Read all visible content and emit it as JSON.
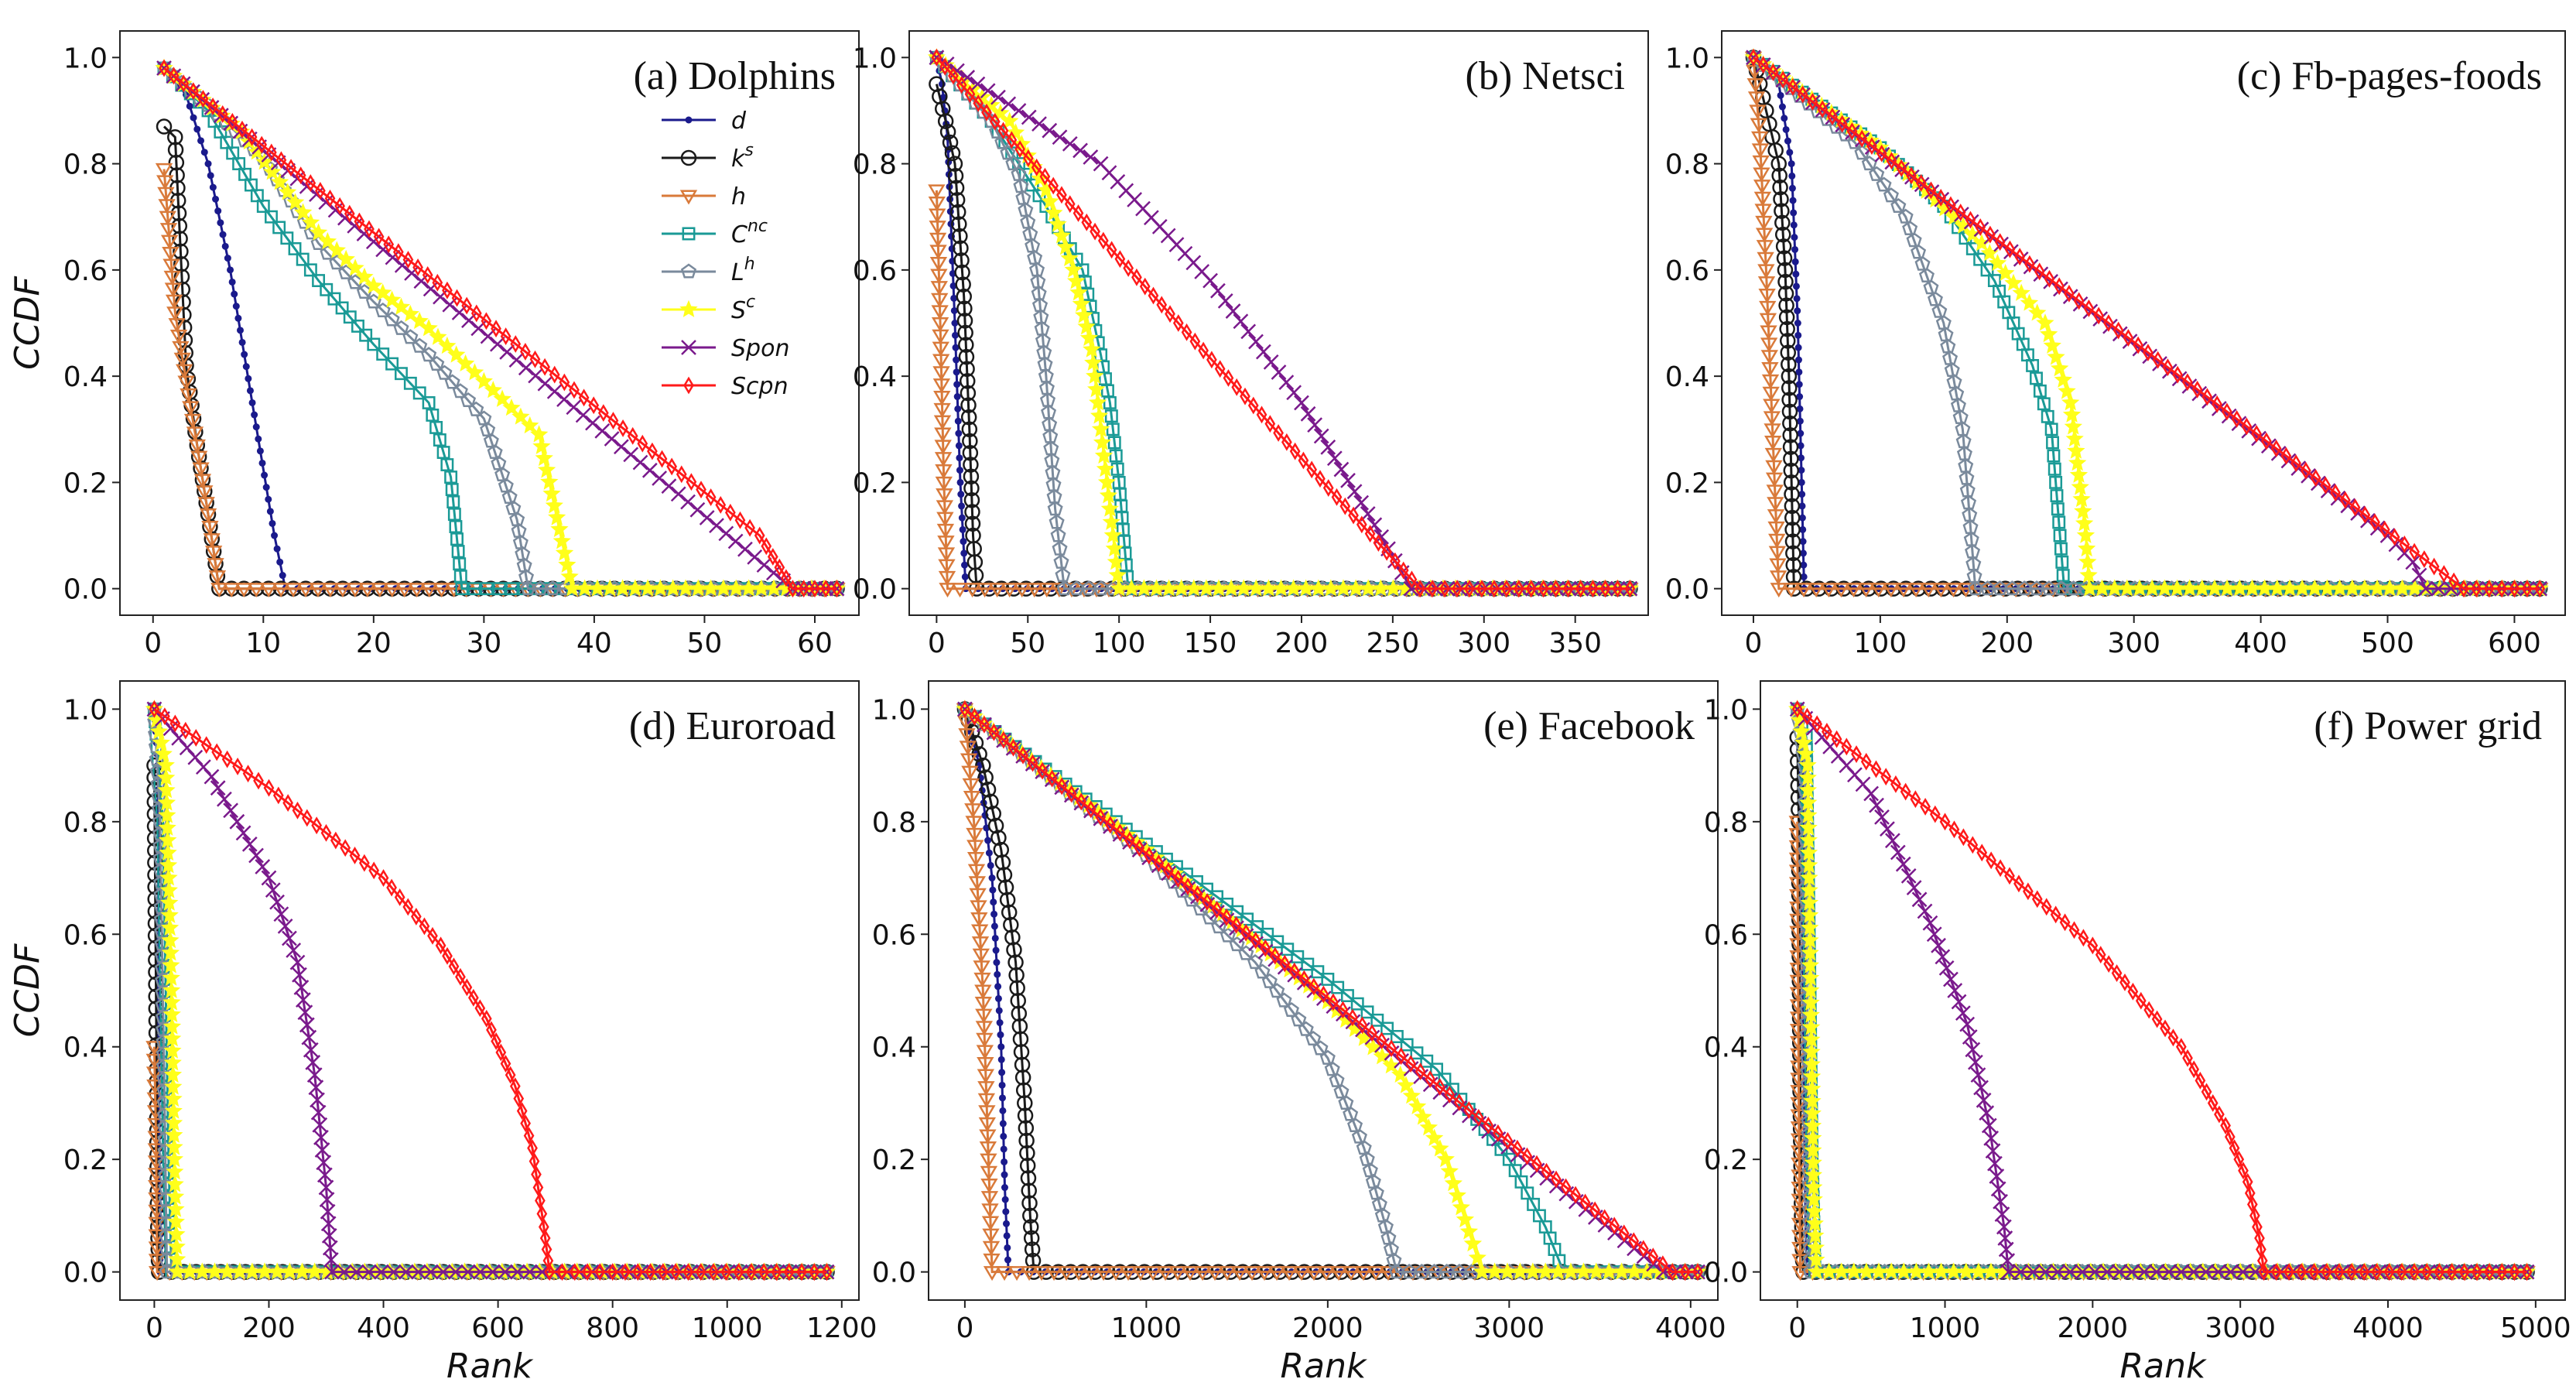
{
  "figure": {
    "legend": [
      "d",
      "ks",
      "h",
      "Cnc",
      "Lh",
      "Sc",
      "Spon",
      "Scpn"
    ]
  },
  "chart_data": [
    {
      "type": "line",
      "title": "(a) Dolphins",
      "xlabel": "",
      "ylabel": "CCDF",
      "xlim": [
        -3,
        64
      ],
      "ylim": [
        -0.05,
        1.05
      ],
      "xticks": [
        0,
        10,
        20,
        30,
        40,
        50,
        60
      ],
      "yticks": [
        0.0,
        0.2,
        0.4,
        0.6,
        0.8,
        1.0
      ],
      "series": [
        {
          "name": "d",
          "x": [
            1,
            3,
            5,
            7,
            9,
            11,
            12,
            62
          ],
          "y": [
            0.98,
            0.93,
            0.8,
            0.6,
            0.35,
            0.1,
            0.0,
            0.0
          ]
        },
        {
          "name": "ks",
          "x": [
            1,
            2,
            3,
            4,
            5,
            6,
            62
          ],
          "y": [
            0.87,
            0.85,
            0.42,
            0.27,
            0.14,
            0.0,
            0.0
          ]
        },
        {
          "name": "h",
          "x": [
            1,
            2,
            3,
            4,
            5,
            6,
            62
          ],
          "y": [
            0.79,
            0.52,
            0.39,
            0.27,
            0.14,
            0.0,
            0.0
          ]
        },
        {
          "name": "Cnc",
          "x": [
            1,
            5,
            10,
            15,
            20,
            25,
            27,
            28,
            62
          ],
          "y": [
            0.98,
            0.9,
            0.72,
            0.58,
            0.46,
            0.35,
            0.21,
            0.0,
            0.0
          ]
        },
        {
          "name": "Lh",
          "x": [
            1,
            5,
            10,
            15,
            20,
            25,
            30,
            33,
            34,
            62
          ],
          "y": [
            0.98,
            0.91,
            0.81,
            0.65,
            0.54,
            0.44,
            0.32,
            0.13,
            0.0,
            0.0
          ]
        },
        {
          "name": "Sc",
          "x": [
            1,
            8,
            15,
            20,
            25,
            30,
            35,
            38,
            62
          ],
          "y": [
            0.98,
            0.86,
            0.67,
            0.57,
            0.49,
            0.39,
            0.29,
            0.0,
            0.0
          ]
        },
        {
          "name": "Spon",
          "x": [
            1,
            58,
            62
          ],
          "y": [
            0.98,
            0.0,
            0.0
          ]
        },
        {
          "name": "Scpn",
          "x": [
            1,
            55,
            58,
            62
          ],
          "y": [
            0.98,
            0.1,
            0.0,
            0.0
          ]
        }
      ]
    },
    {
      "type": "line",
      "title": "(b) Netsci",
      "xlabel": "",
      "ylabel": "",
      "xlim": [
        -15,
        390
      ],
      "ylim": [
        -0.05,
        1.05
      ],
      "xticks": [
        0,
        50,
        100,
        150,
        200,
        250,
        300,
        350
      ],
      "yticks": [
        0.0,
        0.2,
        0.4,
        0.6,
        0.8,
        1.0
      ],
      "series": [
        {
          "name": "d",
          "x": [
            0,
            3,
            6,
            10,
            13,
            16,
            380
          ],
          "y": [
            1.0,
            0.95,
            0.85,
            0.5,
            0.2,
            0.0,
            0.0
          ]
        },
        {
          "name": "ks",
          "x": [
            0,
            5,
            10,
            15,
            18,
            20,
            22,
            380
          ],
          "y": [
            0.95,
            0.88,
            0.8,
            0.55,
            0.3,
            0.1,
            0.0,
            0.0
          ]
        },
        {
          "name": "h",
          "x": [
            0,
            2,
            4,
            6,
            380
          ],
          "y": [
            0.75,
            0.5,
            0.2,
            0.0,
            0.0
          ]
        },
        {
          "name": "Cnc",
          "x": [
            0,
            30,
            60,
            80,
            90,
            95,
            100,
            105,
            380
          ],
          "y": [
            1.0,
            0.88,
            0.72,
            0.6,
            0.44,
            0.35,
            0.2,
            0.0,
            0.0
          ]
        },
        {
          "name": "Lh",
          "x": [
            0,
            30,
            45,
            55,
            60,
            65,
            70,
            380
          ],
          "y": [
            1.0,
            0.88,
            0.78,
            0.6,
            0.4,
            0.15,
            0.0,
            0.0
          ]
        },
        {
          "name": "Sc",
          "x": [
            0,
            40,
            60,
            75,
            85,
            90,
            95,
            100,
            380
          ],
          "y": [
            1.0,
            0.88,
            0.75,
            0.6,
            0.45,
            0.3,
            0.15,
            0.0,
            0.0
          ]
        },
        {
          "name": "Spon",
          "x": [
            0,
            90,
            150,
            200,
            240,
            255,
            260,
            380
          ],
          "y": [
            1.0,
            0.8,
            0.58,
            0.35,
            0.12,
            0.03,
            0.0,
            0.0
          ]
        },
        {
          "name": "Scpn",
          "x": [
            0,
            265,
            380
          ],
          "y": [
            1.0,
            0.0,
            0.0
          ]
        }
      ]
    },
    {
      "type": "line",
      "title": "(c) Fb-pages-foods",
      "xlabel": "",
      "ylabel": "",
      "xlim": [
        -25,
        640
      ],
      "ylim": [
        -0.05,
        1.05
      ],
      "xticks": [
        0,
        100,
        200,
        300,
        400,
        500,
        600
      ],
      "yticks": [
        0.0,
        0.2,
        0.4,
        0.6,
        0.8,
        1.0
      ],
      "series": [
        {
          "name": "d",
          "x": [
            0,
            20,
            30,
            35,
            38,
            40,
            620
          ],
          "y": [
            1.0,
            0.95,
            0.8,
            0.5,
            0.2,
            0.0,
            0.0
          ]
        },
        {
          "name": "ks",
          "x": [
            0,
            10,
            20,
            25,
            28,
            30,
            32,
            620
          ],
          "y": [
            1.0,
            0.9,
            0.8,
            0.6,
            0.4,
            0.2,
            0.0,
            0.0
          ]
        },
        {
          "name": "h",
          "x": [
            0,
            5,
            10,
            15,
            20,
            620
          ],
          "y": [
            1.0,
            0.85,
            0.6,
            0.3,
            0.0,
            0.0
          ]
        },
        {
          "name": "Cnc",
          "x": [
            0,
            100,
            150,
            190,
            220,
            235,
            240,
            245,
            620
          ],
          "y": [
            1.0,
            0.83,
            0.72,
            0.58,
            0.42,
            0.3,
            0.15,
            0.0,
            0.0
          ]
        },
        {
          "name": "Lh",
          "x": [
            0,
            80,
            120,
            150,
            165,
            175,
            620
          ],
          "y": [
            1.0,
            0.84,
            0.7,
            0.5,
            0.3,
            0.0,
            0.0
          ]
        },
        {
          "name": "Sc",
          "x": [
            0,
            100,
            180,
            230,
            250,
            262,
            265,
            620
          ],
          "y": [
            1.0,
            0.83,
            0.65,
            0.5,
            0.35,
            0.1,
            0.0,
            0.0
          ]
        },
        {
          "name": "Spon",
          "x": [
            0,
            500,
            520,
            530,
            620
          ],
          "y": [
            1.0,
            0.1,
            0.05,
            0.0,
            0.0
          ]
        },
        {
          "name": "Scpn",
          "x": [
            0,
            560,
            620
          ],
          "y": [
            1.0,
            0.0,
            0.0
          ]
        }
      ]
    },
    {
      "type": "line",
      "title": "(d) Euroroad",
      "xlabel": "Rank",
      "ylabel": "CCDF",
      "xlim": [
        -60,
        1230
      ],
      "ylim": [
        -0.05,
        1.05
      ],
      "xticks": [
        0,
        200,
        400,
        600,
        800,
        1000,
        1200
      ],
      "yticks": [
        0.0,
        0.2,
        0.4,
        0.6,
        0.8,
        1.0
      ],
      "series": [
        {
          "name": "d",
          "x": [
            0,
            6,
            10,
            1174
          ],
          "y": [
            1.0,
            0.9,
            0.0,
            0.0
          ]
        },
        {
          "name": "ks",
          "x": [
            0,
            4,
            6,
            8,
            1174
          ],
          "y": [
            0.9,
            0.36,
            0.1,
            0.0,
            0.0
          ]
        },
        {
          "name": "h",
          "x": [
            0,
            3,
            5,
            1174
          ],
          "y": [
            0.4,
            0.24,
            0.0,
            0.0
          ]
        },
        {
          "name": "Cnc",
          "x": [
            0,
            15,
            20,
            25,
            30,
            1174
          ],
          "y": [
            1.0,
            0.8,
            0.5,
            0.2,
            0.0,
            0.0
          ]
        },
        {
          "name": "Lh",
          "x": [
            0,
            10,
            18,
            22,
            1174
          ],
          "y": [
            1.0,
            0.8,
            0.3,
            0.0,
            0.0
          ]
        },
        {
          "name": "Sc",
          "x": [
            0,
            20,
            30,
            35,
            40,
            1174
          ],
          "y": [
            1.0,
            0.9,
            0.5,
            0.2,
            0.0,
            0.0
          ]
        },
        {
          "name": "Spon",
          "x": [
            0,
            100,
            200,
            250,
            280,
            300,
            310,
            1174
          ],
          "y": [
            1.0,
            0.88,
            0.7,
            0.55,
            0.35,
            0.15,
            0.0,
            0.0
          ]
        },
        {
          "name": "Scpn",
          "x": [
            0,
            200,
            400,
            500,
            580,
            630,
            660,
            680,
            690,
            1174
          ],
          "y": [
            1.0,
            0.86,
            0.7,
            0.58,
            0.45,
            0.33,
            0.22,
            0.08,
            0.0,
            0.0
          ]
        }
      ]
    },
    {
      "type": "line",
      "title": "(e) Facebook",
      "xlabel": "Rank",
      "ylabel": "",
      "xlim": [
        -200,
        4150
      ],
      "ylim": [
        -0.05,
        1.05
      ],
      "xticks": [
        0,
        1000,
        2000,
        3000,
        4000
      ],
      "yticks": [
        0.0,
        0.2,
        0.4,
        0.6,
        0.8,
        1.0
      ],
      "series": [
        {
          "name": "d",
          "x": [
            0,
            80,
            150,
            200,
            220,
            240,
            4039
          ],
          "y": [
            1.0,
            0.9,
            0.7,
            0.4,
            0.15,
            0.0,
            0.0
          ]
        },
        {
          "name": "ks",
          "x": [
            0,
            100,
            200,
            280,
            330,
            360,
            380,
            4039
          ],
          "y": [
            1.0,
            0.9,
            0.75,
            0.55,
            0.3,
            0.1,
            0.0,
            0.0
          ]
        },
        {
          "name": "h",
          "x": [
            0,
            50,
            100,
            130,
            150,
            4039
          ],
          "y": [
            1.0,
            0.8,
            0.5,
            0.2,
            0.0,
            0.0
          ]
        },
        {
          "name": "Cnc",
          "x": [
            0,
            1000,
            2000,
            2600,
            3000,
            3200,
            3300,
            4039
          ],
          "y": [
            1.0,
            0.76,
            0.52,
            0.36,
            0.2,
            0.08,
            0.0,
            0.0
          ]
        },
        {
          "name": "Lh",
          "x": [
            0,
            1000,
            1600,
            2000,
            2200,
            2320,
            2380,
            4039
          ],
          "y": [
            1.0,
            0.74,
            0.55,
            0.38,
            0.22,
            0.08,
            0.0,
            0.0
          ]
        },
        {
          "name": "Sc",
          "x": [
            0,
            1000,
            2000,
            2400,
            2650,
            2800,
            2850,
            4039
          ],
          "y": [
            1.0,
            0.75,
            0.48,
            0.35,
            0.2,
            0.05,
            0.0,
            0.0
          ]
        },
        {
          "name": "Spon",
          "x": [
            0,
            3850,
            4039
          ],
          "y": [
            1.0,
            0.0,
            0.0
          ]
        },
        {
          "name": "Scpn",
          "x": [
            0,
            3900,
            4039
          ],
          "y": [
            1.0,
            0.0,
            0.0
          ]
        }
      ]
    },
    {
      "type": "line",
      "title": "(f) Power grid",
      "xlabel": "Rank",
      "ylabel": "",
      "xlim": [
        -250,
        5200
      ],
      "ylim": [
        -0.05,
        1.05
      ],
      "xticks": [
        0,
        1000,
        2000,
        3000,
        4000,
        5000
      ],
      "yticks": [
        0.0,
        0.2,
        0.4,
        0.6,
        0.8,
        1.0
      ],
      "series": [
        {
          "name": "d",
          "x": [
            0,
            20,
            40,
            60,
            4941
          ],
          "y": [
            1.0,
            0.95,
            0.4,
            0.0,
            0.0
          ]
        },
        {
          "name": "ks",
          "x": [
            0,
            10,
            20,
            30,
            40,
            4941
          ],
          "y": [
            0.95,
            0.8,
            0.32,
            0.1,
            0.0,
            0.0
          ]
        },
        {
          "name": "h",
          "x": [
            0,
            10,
            20,
            4941
          ],
          "y": [
            0.8,
            0.3,
            0.0,
            0.0
          ]
        },
        {
          "name": "Cnc",
          "x": [
            0,
            60,
            80,
            100,
            120,
            4941
          ],
          "y": [
            1.0,
            0.95,
            0.6,
            0.2,
            0.0,
            0.0
          ]
        },
        {
          "name": "Lh",
          "x": [
            0,
            50,
            70,
            90,
            4941
          ],
          "y": [
            1.0,
            0.9,
            0.4,
            0.0,
            0.0
          ]
        },
        {
          "name": "Sc",
          "x": [
            0,
            70,
            90,
            110,
            130,
            4941
          ],
          "y": [
            1.0,
            0.9,
            0.5,
            0.15,
            0.0,
            0.0
          ]
        },
        {
          "name": "Spon",
          "x": [
            0,
            500,
            900,
            1150,
            1300,
            1400,
            1430,
            4941
          ],
          "y": [
            1.0,
            0.85,
            0.62,
            0.44,
            0.26,
            0.08,
            0.0,
            0.0
          ]
        },
        {
          "name": "Scpn",
          "x": [
            0,
            1000,
            2000,
            2600,
            2900,
            3050,
            3130,
            3160,
            4941
          ],
          "y": [
            1.0,
            0.8,
            0.58,
            0.4,
            0.26,
            0.16,
            0.06,
            0.0,
            0.0
          ]
        }
      ]
    }
  ],
  "series_style": {
    "d": {
      "color": "#1a1a8c",
      "marker": "dot"
    },
    "ks": {
      "color": "#1a1a1a",
      "marker": "circle"
    },
    "h": {
      "color": "#d97a3a",
      "marker": "triangle-down"
    },
    "Cnc": {
      "color": "#1a9a96",
      "marker": "square"
    },
    "Lh": {
      "color": "#7a8a9c",
      "marker": "pentagon"
    },
    "Sc": {
      "color": "#ffff1a",
      "marker": "star"
    },
    "Spon": {
      "color": "#7a1a8c",
      "marker": "x"
    },
    "Scpn": {
      "color": "#ff1a1a",
      "marker": "thin-diamond"
    }
  }
}
